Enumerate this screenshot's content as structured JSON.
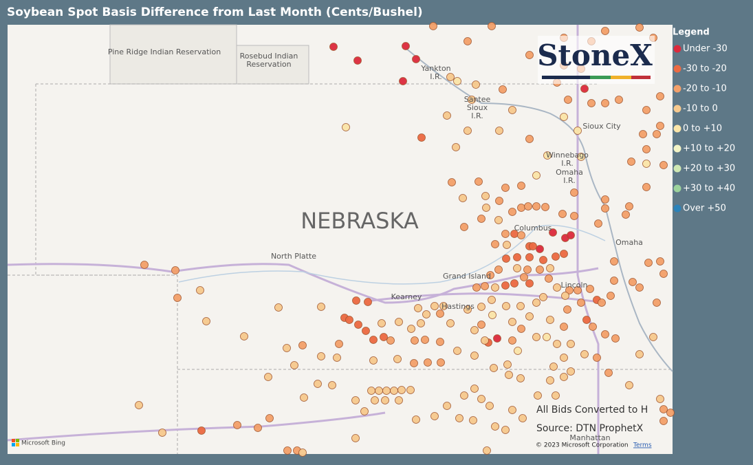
{
  "header": {
    "title": "Soybean Spot Basis Difference from Last Month (Cents/Bushel)"
  },
  "legend": {
    "title": "Legend",
    "items": [
      {
        "label": "Under -30",
        "color": "#dc2a3c"
      },
      {
        "label": "-30 to -20",
        "color": "#ec6a42"
      },
      {
        "label": "-20 to -10",
        "color": "#f3a06a"
      },
      {
        "label": "-10 to 0",
        "color": "#f7c98e"
      },
      {
        "label": "0 to +10",
        "color": "#fbe5a8"
      },
      {
        "label": "+10 to +20",
        "color": "#f3f4c6"
      },
      {
        "label": "+20 to +30",
        "color": "#cfe8b3"
      },
      {
        "label": "+30 to +40",
        "color": "#9cd39c"
      },
      {
        "label": "Over +50",
        "color": "#2b83ba"
      }
    ]
  },
  "logo": "StoneX",
  "map": {
    "state": "NEBRASKA",
    "labels": [
      "Pine Ridge Indian Reservation",
      "Rosebud Indian",
      "Reservation",
      "Yankton",
      "I.R.",
      "Santee",
      "Sioux",
      "I.R.",
      "Sioux City",
      "Winnebago",
      "I.R.",
      "Omaha",
      "I.R.",
      "North Platte",
      "Columbus",
      "Omaha",
      "Grand Island",
      "Kearney",
      "Hastings",
      "Lincoln",
      "Manhattan"
    ]
  },
  "notes": {
    "conversion": "All Bids Converted to H",
    "source": "Source: DTN ProphetX",
    "copyright": "© 2023 Microsoft Corporation",
    "terms": "Terms",
    "provider": "Microsoft Bing"
  }
}
